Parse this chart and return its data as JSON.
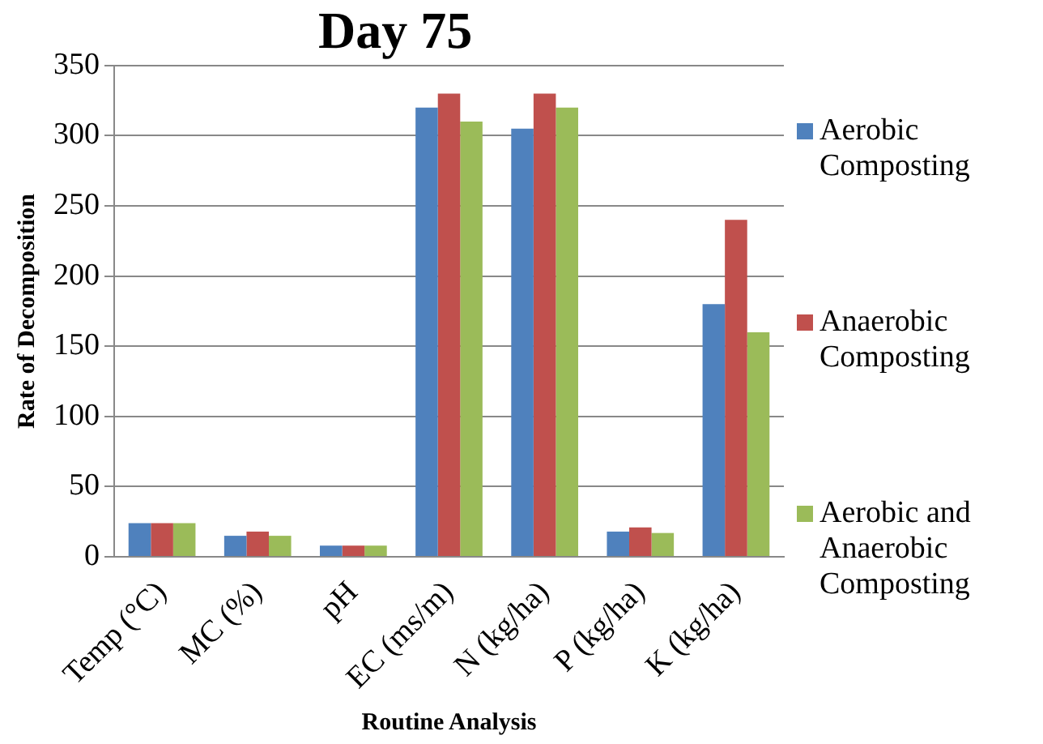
{
  "chart_data": {
    "type": "bar",
    "title": "Day 75",
    "xlabel": "Routine Analysis",
    "ylabel": "Rate of Decomposition",
    "categories": [
      "Temp (°C)",
      "MC (%)",
      "pH",
      "EC (ms/m)",
      "N (kg/ha)",
      "P (kg/ha)",
      "K (kg/ha)"
    ],
    "series": [
      {
        "name": "Aerobic Composting",
        "color": "#4f81bd",
        "values": [
          24,
          15,
          8,
          320,
          305,
          18,
          180
        ]
      },
      {
        "name": "Anaerobic Composting",
        "color": "#c0504d",
        "values": [
          24,
          18,
          8,
          330,
          330,
          21,
          240
        ]
      },
      {
        "name": "Aerobic and Anaerobic Composting",
        "color": "#9bbb59",
        "values": [
          24,
          15,
          8,
          310,
          320,
          17,
          160
        ]
      }
    ],
    "ylim": [
      0,
      350
    ],
    "yticks": [
      0,
      50,
      100,
      150,
      200,
      250,
      300,
      350
    ],
    "grid": "y",
    "legend": "right"
  }
}
